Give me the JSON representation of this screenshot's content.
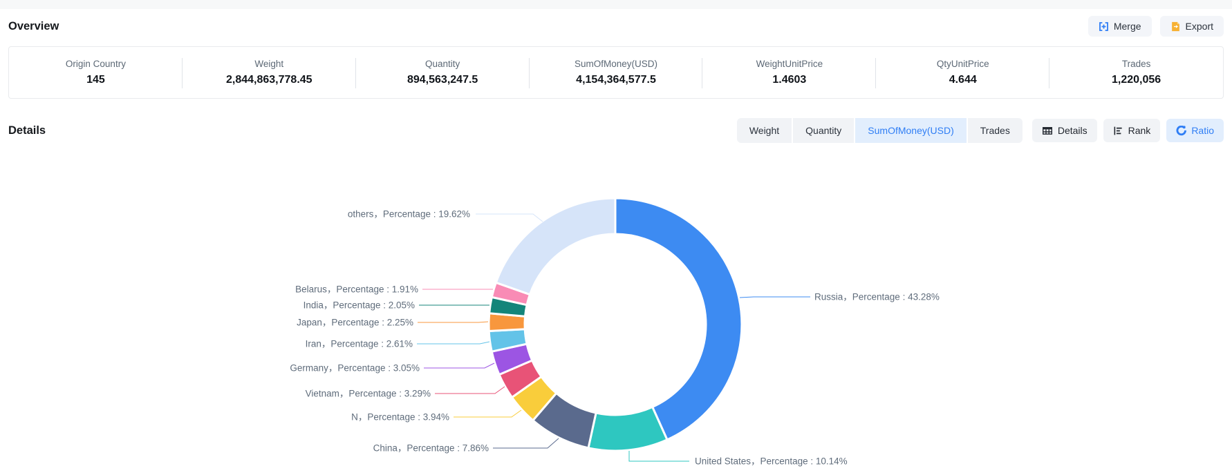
{
  "page": {
    "overview_title": "Overview",
    "details_title": "Details"
  },
  "toolbar": {
    "merge_label": "Merge",
    "export_label": "Export"
  },
  "stats": [
    {
      "label": "Origin Country",
      "value": "145"
    },
    {
      "label": "Weight",
      "value": "2,844,863,778.45"
    },
    {
      "label": "Quantity",
      "value": "894,563,247.5"
    },
    {
      "label": "SumOfMoney(USD)",
      "value": "4,154,364,577.5"
    },
    {
      "label": "WeightUnitPrice",
      "value": "1.4603"
    },
    {
      "label": "QtyUnitPrice",
      "value": "4.644"
    },
    {
      "label": "Trades",
      "value": "1,220,056"
    }
  ],
  "tabs": {
    "metric_tabs": [
      {
        "label": "Weight",
        "active": false
      },
      {
        "label": "Quantity",
        "active": false
      },
      {
        "label": "SumOfMoney(USD)",
        "active": true
      },
      {
        "label": "Trades",
        "active": false
      }
    ],
    "view_buttons": [
      {
        "label": "Details",
        "icon": "table-icon",
        "active": false
      },
      {
        "label": "Rank",
        "icon": "rank-icon",
        "active": false
      },
      {
        "label": "Ratio",
        "icon": "pie-icon",
        "active": true
      }
    ]
  },
  "colors": {
    "accent_blue": "#2F7EF5",
    "active_tab_bg": "#E2EEFD",
    "button_bg": "#F1F3F6",
    "export_icon_orange": "#F7B133",
    "chart_label_gray": "#5F6C7B",
    "stat_label_gray": "#5C6875"
  },
  "chart_data": {
    "type": "pie",
    "donut": true,
    "start_angle_deg": 0,
    "clockwise": true,
    "legend": "none",
    "label_connector": "，Percentage : ",
    "value_suffix": "%",
    "slices": [
      {
        "name": "Russia",
        "percentage": 43.28,
        "color": "#3D8BF2"
      },
      {
        "name": "United States",
        "percentage": 10.14,
        "color": "#2EC7C0"
      },
      {
        "name": "China",
        "percentage": 7.86,
        "color": "#5A6A8D"
      },
      {
        "name": "N",
        "percentage": 3.94,
        "color": "#F9CD3B"
      },
      {
        "name": "Vietnam",
        "percentage": 3.29,
        "color": "#E85377"
      },
      {
        "name": "Germany",
        "percentage": 3.05,
        "color": "#9C55E3"
      },
      {
        "name": "Iran",
        "percentage": 2.61,
        "color": "#63C3E8"
      },
      {
        "name": "Japan",
        "percentage": 2.25,
        "color": "#F8973D"
      },
      {
        "name": "India",
        "percentage": 2.05,
        "color": "#14857A"
      },
      {
        "name": "Belarus",
        "percentage": 1.91,
        "color": "#F98BB5"
      },
      {
        "name": "others",
        "percentage": 19.62,
        "color": "#D6E4F9"
      }
    ]
  }
}
